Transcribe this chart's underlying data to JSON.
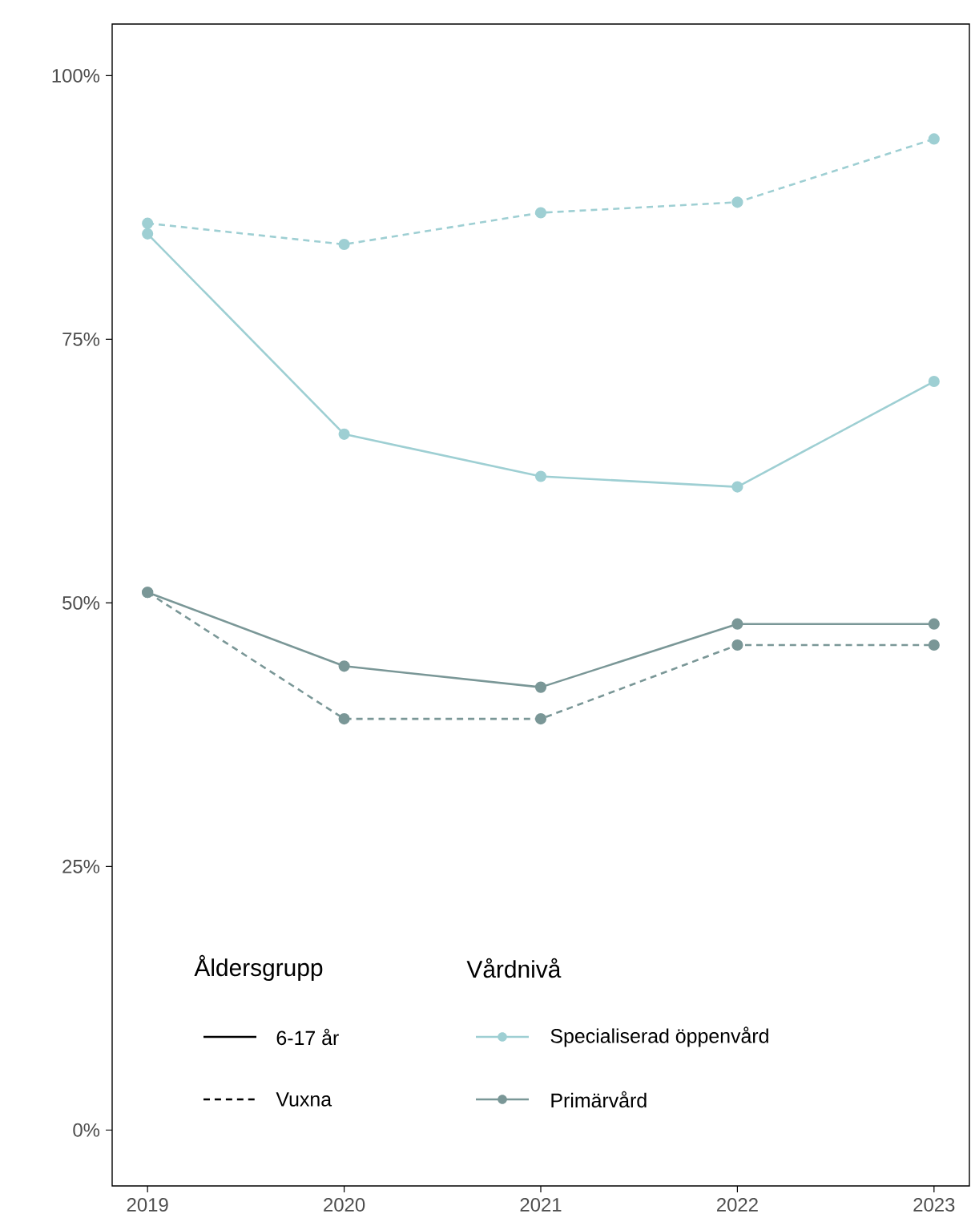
{
  "chart_data": {
    "type": "line",
    "x": [
      2019,
      2020,
      2021,
      2022,
      2023
    ],
    "xlim": [
      2018.82,
      2023.18
    ],
    "xticks": [
      2019,
      2020,
      2021,
      2022,
      2023
    ],
    "ylim": [
      -5.3,
      104.9
    ],
    "yticks": [
      {
        "value": 0,
        "label": "0%"
      },
      {
        "value": 25,
        "label": "25%"
      },
      {
        "value": 50,
        "label": "50%"
      },
      {
        "value": 75,
        "label": "75%"
      },
      {
        "value": 100,
        "label": "100%"
      }
    ],
    "series": [
      {
        "name": "Specialiserad öppenvård",
        "color": "#9ecfd3",
        "line_style": "solid",
        "values": [
          85,
          66,
          62,
          61,
          71
        ]
      },
      {
        "name": "Primärvård",
        "color": "#7a9797",
        "line_style": "solid",
        "values": [
          51,
          44,
          42,
          48,
          48
        ]
      },
      {
        "color": "#9ecfd3",
        "line_style": "dashed",
        "values": [
          86,
          84,
          87,
          88,
          94
        ]
      },
      {
        "color": "#7a9797",
        "line_style": "dashed",
        "values": [
          51,
          39,
          39,
          46,
          46
        ]
      }
    ],
    "marker": "circle",
    "grid": false,
    "legend": "bottom",
    "legend_title": [
      "Åldersgrupp",
      "Vårdnivå"
    ],
    "annotations": [
      "6-17 år",
      "Vuxna"
    ]
  }
}
